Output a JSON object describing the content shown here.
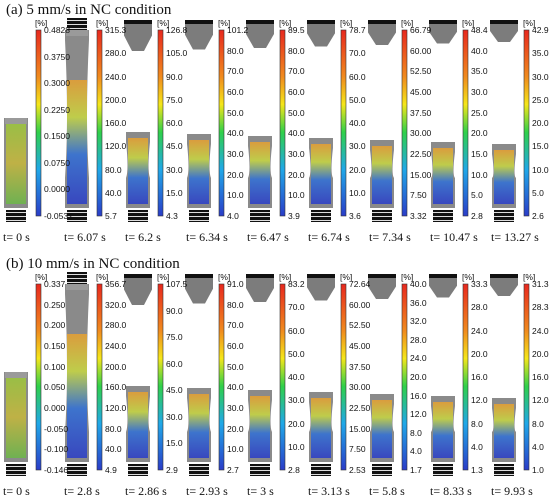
{
  "panels": [
    {
      "title": "(a) 5 mm/s in NC condition",
      "frames": [
        {
          "time": "t= 0 s",
          "ticks": [
            "0.4828",
            "0.3750",
            "0.3000",
            "0.2250",
            "0.1500",
            "0.0750",
            "0.0000",
            "-0.0532"
          ]
        },
        {
          "time": "t= 6.07 s",
          "ticks": [
            "315.3",
            "280.0",
            "240.0",
            "200.0",
            "160.0",
            "120.0",
            "80.0",
            "40.0",
            "5.7"
          ]
        },
        {
          "time": "t= 6.2 s",
          "ticks": [
            "126.8",
            "105.0",
            "90.0",
            "75.0",
            "60.0",
            "45.0",
            "30.0",
            "15.0",
            "4.3"
          ]
        },
        {
          "time": "t= 6.34 s",
          "ticks": [
            "101.2",
            "80.0",
            "70.0",
            "60.0",
            "50.0",
            "40.0",
            "30.0",
            "20.0",
            "10.0",
            "4.0"
          ]
        },
        {
          "time": "t= 6.47 s",
          "ticks": [
            "89.5",
            "80.0",
            "70.0",
            "60.0",
            "50.0",
            "40.0",
            "30.0",
            "20.0",
            "10.0",
            "3.9"
          ]
        },
        {
          "time": "t= 6.74 s",
          "ticks": [
            "78.7",
            "70.0",
            "60.0",
            "50.0",
            "40.0",
            "30.0",
            "20.0",
            "10.0",
            "3.6"
          ]
        },
        {
          "time": "t= 7.34 s",
          "ticks": [
            "66.79",
            "60.00",
            "52.50",
            "45.00",
            "37.50",
            "30.00",
            "22.50",
            "15.00",
            "7.50",
            "3.32"
          ]
        },
        {
          "time": "t= 10.47 s",
          "ticks": [
            "48.4",
            "40.0",
            "35.0",
            "30.0",
            "25.0",
            "20.0",
            "15.0",
            "10.0",
            "5.0",
            "2.8"
          ]
        },
        {
          "time": "t= 13.27 s",
          "ticks": [
            "42.9",
            "35.0",
            "30.0",
            "25.0",
            "20.0",
            "15.0",
            "10.0",
            "5.0",
            "2.6"
          ]
        }
      ]
    },
    {
      "title": "(b) 10 mm/s in NC condition",
      "frames": [
        {
          "time": "t= 0 s",
          "ticks": [
            "0.337",
            "0.250",
            "0.200",
            "0.150",
            "0.100",
            "0.050",
            "0.000",
            "-0.050",
            "-0.100",
            "-0.146"
          ]
        },
        {
          "time": "t= 2.8 s",
          "ticks": [
            "356.7",
            "320.0",
            "280.0",
            "240.0",
            "200.0",
            "160.0",
            "120.0",
            "80.0",
            "40.0",
            "4.9"
          ]
        },
        {
          "time": "t= 2.86 s",
          "ticks": [
            "107.5",
            "90.0",
            "75.0",
            "60.0",
            "45.0",
            "30.0",
            "15.0",
            "2.9"
          ]
        },
        {
          "time": "t= 2.93 s",
          "ticks": [
            "91.0",
            "80.0",
            "70.0",
            "60.0",
            "50.0",
            "40.0",
            "30.0",
            "20.0",
            "10.0",
            "2.7"
          ]
        },
        {
          "time": "t= 3 s",
          "ticks": [
            "83.2",
            "70.0",
            "60.0",
            "50.0",
            "40.0",
            "30.0",
            "20.0",
            "10.0",
            "2.8"
          ]
        },
        {
          "time": "t= 3.13 s",
          "ticks": [
            "72.64",
            "60.00",
            "52.50",
            "45.00",
            "37.50",
            "30.00",
            "22.50",
            "15.00",
            "7.50",
            "2.53"
          ]
        },
        {
          "time": "t= 5.8 s",
          "ticks": [
            "40.0",
            "36.0",
            "32.0",
            "28.0",
            "24.0",
            "20.0",
            "16.0",
            "12.0",
            "8.0",
            "4.0",
            "1.7"
          ]
        },
        {
          "time": "t= 8.33 s",
          "ticks": [
            "33.3",
            "28.0",
            "24.0",
            "20.0",
            "16.0",
            "12.0",
            "8.0",
            "4.0",
            "1.3"
          ]
        },
        {
          "time": "t= 9.93 s",
          "ticks": [
            "31.3",
            "28.3",
            "24.0",
            "20.0",
            "16.0",
            "12.0",
            "8.0",
            "4.0",
            "1.0"
          ]
        }
      ]
    }
  ],
  "unit_label": "[%]",
  "colors": {
    "hot": "#e8281e",
    "warm": "#f5e61a",
    "mid": "#2fd04a",
    "cool": "#20a8e8",
    "cold": "#2a3cc8",
    "specimen_gray": "#8a8a8a"
  }
}
